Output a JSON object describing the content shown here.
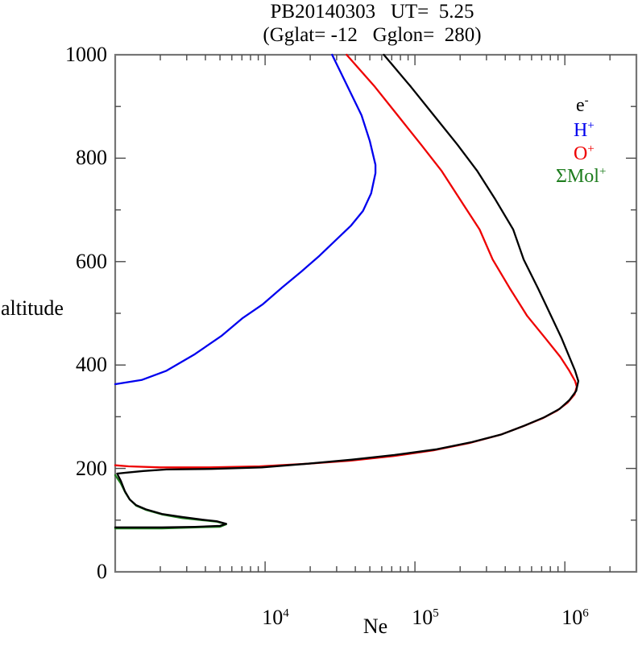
{
  "title": {
    "line1": "PB20140303   UT=  5.25",
    "line2": "(Gglat= -12   Gglon=  280)"
  },
  "axes": {
    "y": {
      "label": "altitude",
      "tick_labels": [
        "1000",
        "800",
        "600",
        "400",
        "200",
        "0"
      ]
    },
    "x": {
      "label": "Ne",
      "tick_labels": [
        {
          "base": "10",
          "exp": "4"
        },
        {
          "base": "10",
          "exp": "5"
        },
        {
          "base": "10",
          "exp": "6"
        }
      ]
    }
  },
  "legend": {
    "items": [
      {
        "label": "e",
        "sup": "-",
        "color": "#000000"
      },
      {
        "label": "H",
        "sup": "+",
        "color": "#0000ee"
      },
      {
        "label": "O",
        "sup": "+",
        "color": "#ee0000"
      },
      {
        "label": "ΣMol",
        "sup": "+",
        "color": "#1e7d1e"
      }
    ]
  },
  "chart_data": {
    "type": "line",
    "title": "PB20140303  UT= 5.25",
    "subtitle": "(Gglat= -12  Gglon= 280)",
    "xlabel": "Ne",
    "ylabel": "altitude",
    "x_scale": "log",
    "xlim": [
      1000,
      3000000
    ],
    "ylim": [
      0,
      1000
    ],
    "x_major_ticks": [
      10000,
      100000,
      1000000
    ],
    "y_major_ticks": [
      0,
      200,
      400,
      600,
      800,
      1000
    ],
    "y_minor_step": 100,
    "grid": false,
    "legend_position": "upper-right-inside",
    "series": [
      {
        "name": "e-",
        "color": "#000000",
        "points": [
          [
            62000,
            1000
          ],
          [
            94000,
            938
          ],
          [
            136000,
            880
          ],
          [
            192000,
            826
          ],
          [
            259000,
            776
          ],
          [
            344000,
            720
          ],
          [
            452000,
            662
          ],
          [
            531000,
            604
          ],
          [
            663000,
            548
          ],
          [
            809000,
            495
          ],
          [
            950000,
            452
          ],
          [
            1070000,
            416
          ],
          [
            1170000,
            389
          ],
          [
            1230000,
            369
          ],
          [
            1190000,
            350
          ],
          [
            1070000,
            332
          ],
          [
            920000,
            315
          ],
          [
            730000,
            299
          ],
          [
            540000,
            283
          ],
          [
            380000,
            266
          ],
          [
            240000,
            251
          ],
          [
            140000,
            237
          ],
          [
            73000,
            226
          ],
          [
            38000,
            217
          ],
          [
            19000,
            209
          ],
          [
            9500,
            202
          ],
          [
            4400,
            199
          ],
          [
            2200,
            198
          ],
          [
            1540,
            195
          ],
          [
            1210,
            192
          ],
          [
            1030,
            190
          ],
          [
            1090,
            176
          ],
          [
            1160,
            156
          ],
          [
            1250,
            140
          ],
          [
            1380,
            129
          ],
          [
            1600,
            121
          ],
          [
            2050,
            112
          ],
          [
            2800,
            106
          ],
          [
            3800,
            101
          ],
          [
            4750,
            98
          ],
          [
            5500,
            93
          ],
          [
            5000,
            89
          ],
          [
            3400,
            87
          ],
          [
            2050,
            86
          ],
          [
            1250,
            86
          ],
          [
            1000,
            86
          ]
        ]
      },
      {
        "name": "H+",
        "color": "#0000ee",
        "points": [
          [
            28000,
            1000
          ],
          [
            36000,
            935
          ],
          [
            44000,
            883
          ],
          [
            50000,
            833
          ],
          [
            54500,
            787
          ],
          [
            54500,
            771
          ],
          [
            51000,
            732
          ],
          [
            45000,
            698
          ],
          [
            37500,
            670
          ],
          [
            29000,
            639
          ],
          [
            23000,
            611
          ],
          [
            17500,
            581
          ],
          [
            13000,
            550
          ],
          [
            9600,
            517
          ],
          [
            7100,
            491
          ],
          [
            5100,
            456
          ],
          [
            3400,
            421
          ],
          [
            2200,
            389
          ],
          [
            1500,
            371
          ],
          [
            1000,
            363
          ]
        ]
      },
      {
        "name": "O+",
        "color": "#ee0000",
        "points": [
          [
            35000,
            1000
          ],
          [
            54000,
            938
          ],
          [
            78000,
            880
          ],
          [
            110000,
            826
          ],
          [
            150000,
            776
          ],
          [
            200000,
            720
          ],
          [
            270000,
            662
          ],
          [
            330000,
            604
          ],
          [
            430000,
            548
          ],
          [
            560000,
            495
          ],
          [
            740000,
            452
          ],
          [
            930000,
            416
          ],
          [
            1070000,
            389
          ],
          [
            1170000,
            369
          ],
          [
            1200000,
            358
          ],
          [
            1160000,
            343
          ],
          [
            1040000,
            327
          ],
          [
            890000,
            312
          ],
          [
            710000,
            297
          ],
          [
            530000,
            282
          ],
          [
            370000,
            265
          ],
          [
            230000,
            249
          ],
          [
            133000,
            235
          ],
          [
            72000,
            224
          ],
          [
            37000,
            215
          ],
          [
            19000,
            209
          ],
          [
            9200,
            204
          ],
          [
            4250,
            202
          ],
          [
            2000,
            202
          ],
          [
            1230,
            204
          ],
          [
            1000,
            206
          ]
        ]
      },
      {
        "name": "ΣMol+",
        "color": "#1e7d1e",
        "points": [
          [
            1000,
            187
          ],
          [
            1090,
            171
          ],
          [
            1170,
            153
          ],
          [
            1250,
            140
          ],
          [
            1380,
            128
          ],
          [
            1600,
            120
          ],
          [
            2050,
            111
          ],
          [
            2800,
            104
          ],
          [
            3800,
            100
          ],
          [
            4750,
            97
          ],
          [
            5500,
            92
          ],
          [
            5000,
            87
          ],
          [
            3400,
            86
          ],
          [
            2050,
            84
          ],
          [
            1250,
            84
          ],
          [
            1000,
            84
          ]
        ]
      }
    ]
  }
}
